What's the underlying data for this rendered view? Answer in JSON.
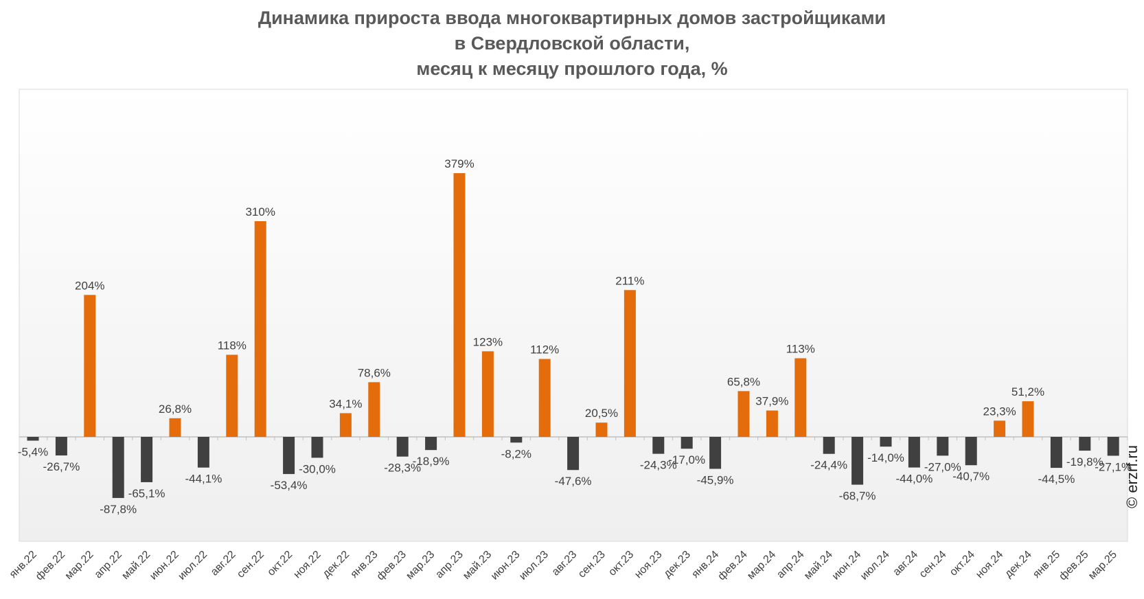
{
  "title_lines": [
    "Динамика прироста ввода многоквартирных домов застройщиками",
    "в Свердловской области,",
    "месяц к месяцу прошлого года, %"
  ],
  "watermark": "© erzrf.ru",
  "colors": {
    "positive": "#E46C0A",
    "negative": "#404040",
    "label": "#404040",
    "background_top": "#FFFFFF",
    "background_bottom": "#EFEFEF"
  },
  "chart_data": {
    "type": "bar",
    "title": "Динамика прироста ввода многоквартирных домов застройщиками в Свердловской области, месяц к месяцу прошлого года, %",
    "categories": [
      "янв.22",
      "фев.22",
      "мар.22",
      "апр.22",
      "май.22",
      "июн.22",
      "июл.22",
      "авг.22",
      "сен.22",
      "окт.22",
      "ноя.22",
      "дек.22",
      "янв.23",
      "фев.23",
      "мар.23",
      "апр.23",
      "май.23",
      "июн.23",
      "июл.23",
      "авг.23",
      "сен.23",
      "окт.23",
      "ноя.23",
      "дек.23",
      "янв.24",
      "фев.24",
      "мар.24",
      "апр.24",
      "май.24",
      "июн.24",
      "июл.24",
      "авг.24",
      "сен.24",
      "окт.24",
      "ноя.24",
      "дек.24",
      "янв.25",
      "фев.25",
      "мар.25"
    ],
    "values": [
      -5.4,
      -26.7,
      204,
      -87.8,
      -65.1,
      26.8,
      -44.1,
      118,
      310,
      -53.4,
      -30.0,
      34.1,
      78.6,
      -28.3,
      -18.9,
      379,
      123,
      -8.2,
      112,
      -47.6,
      20.5,
      211,
      -24.3,
      -17.0,
      -45.9,
      65.8,
      37.9,
      113,
      -24.4,
      -68.7,
      -14.0,
      -44.0,
      -27.0,
      -40.7,
      23.3,
      51.2,
      -44.5,
      -19.8,
      -27.1
    ],
    "data_labels": [
      "-5,4%",
      "-26,7%",
      "204%",
      "-87,8%",
      "-65,1%",
      "26,8%",
      "-44,1%",
      "118%",
      "310%",
      "-53,4%",
      "-30,0%",
      "34,1%",
      "78,6%",
      "-28,3%",
      "-18,9%",
      "379%",
      "123%",
      "-8,2%",
      "112%",
      "-47,6%",
      "20,5%",
      "211%",
      "-24,3%",
      "-17,0%",
      "-45,9%",
      "65,8%",
      "37,9%",
      "113%",
      "-24,4%",
      "-68,7%",
      "-14,0%",
      "-44,0%",
      "-27,0%",
      "-40,7%",
      "23,3%",
      "51,2%",
      "-44,5%",
      "-19,8%",
      "-27,1%"
    ],
    "xlabel": "",
    "ylabel": "",
    "ylim": [
      -120,
      500
    ],
    "grid": false,
    "legend": "none"
  }
}
